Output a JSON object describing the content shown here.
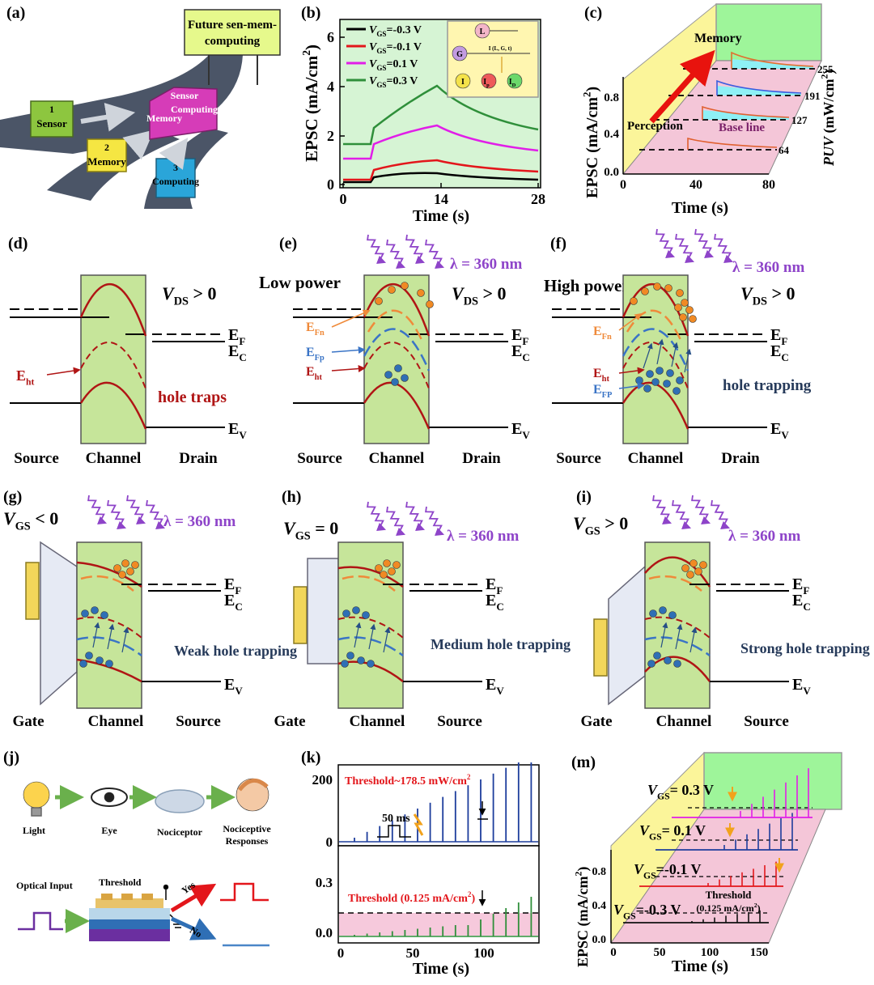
{
  "a": {
    "label": "(a)",
    "sign": [
      "Future sen-mem-",
      "computing"
    ],
    "car1": [
      "1",
      "Sensor"
    ],
    "car2": [
      "2",
      "Memory"
    ],
    "car3": [
      "3",
      "Computing"
    ],
    "truck": [
      "Sensor",
      "Memory",
      "Computing"
    ]
  },
  "b": {
    "label": "(b)",
    "ylabel": [
      "EPSC (mA/cm",
      "2",
      ")"
    ],
    "xlabel": "Time (s)",
    "xticks": [
      "0",
      "14",
      "28"
    ],
    "yticks": [
      "0",
      "2",
      "4",
      "6"
    ],
    "legend": [
      [
        "V",
        "GS",
        "=-0.3 V"
      ],
      [
        "V",
        "GS",
        "=-0.1 V"
      ],
      [
        "V",
        "GS",
        "=0.1 V"
      ],
      [
        "V",
        "GS",
        "=0.3 V"
      ]
    ],
    "inset": [
      "L",
      "G",
      "I (L, G, t)",
      "I"
    ],
    "inset_p": [
      "I",
      "p"
    ],
    "inset_d": [
      "I",
      "D"
    ]
  },
  "c": {
    "label": "(c)",
    "memory": "Memory",
    "perception": "Perception",
    "baseline": "Base line",
    "ylabel": [
      "EPSC (mA/cm",
      "2",
      ")"
    ],
    "yticks": [
      "0.0",
      "0.4",
      "0.8"
    ],
    "xticks": [
      "0",
      "40",
      "80"
    ],
    "xlabel": "Time (s)",
    "zticks": [
      "64",
      "127",
      "191",
      "255"
    ],
    "zlabel": [
      "P",
      "UV",
      " (mW/cm",
      "2",
      ")"
    ]
  },
  "d": {
    "label": "(d)",
    "vds": [
      "V",
      "DS",
      " > 0"
    ],
    "ef": [
      "E",
      "F"
    ],
    "ec": [
      "E",
      "C"
    ],
    "eht": [
      "E",
      "ht"
    ],
    "traps": "hole traps",
    "ev": [
      "E",
      "V"
    ],
    "bottom": [
      "Source",
      "Channel",
      "Drain"
    ]
  },
  "e": {
    "label": "(e)",
    "lambda": "λ = 360 nm",
    "power": "Low power",
    "vds": [
      "V",
      "DS",
      " > 0"
    ],
    "efn": [
      "E",
      "Fn"
    ],
    "efp": [
      "E",
      "Fp"
    ],
    "eht": [
      "E",
      "ht"
    ],
    "ef": [
      "E",
      "F"
    ],
    "ec": [
      "E",
      "C"
    ],
    "ev": [
      "E",
      "V"
    ],
    "bottom": [
      "Source",
      "Channel",
      "Drain"
    ]
  },
  "f": {
    "label": "(f)",
    "lambda": "λ = 360 nm",
    "power": "High power",
    "vds": [
      "V",
      "DS",
      " > 0"
    ],
    "efn": [
      "E",
      "Fn"
    ],
    "eht": [
      "E",
      "ht"
    ],
    "efp": [
      "E",
      "FP"
    ],
    "trapping": "hole trapping",
    "ef": [
      "E",
      "F"
    ],
    "ec": [
      "E",
      "C"
    ],
    "ev": [
      "E",
      "V"
    ],
    "bottom": [
      "Source",
      "Channel",
      "Drain"
    ]
  },
  "g": {
    "label": "(g)",
    "vgs": [
      "V",
      "GS",
      " < 0"
    ],
    "lambda": "λ = 360 nm",
    "ef": [
      "E",
      "F"
    ],
    "ec": [
      "E",
      "C"
    ],
    "trapping": "Weak hole trapping",
    "ev": [
      "E",
      "V"
    ],
    "bottom": [
      "Gate",
      "Channel",
      "Source"
    ]
  },
  "h": {
    "label": "(h)",
    "vgs": [
      "V",
      "GS",
      " = 0"
    ],
    "lambda": "λ = 360 nm",
    "ef": [
      "E",
      "F"
    ],
    "ec": [
      "E",
      "C"
    ],
    "trapping": "Medium hole trapping",
    "ev": [
      "E",
      "V"
    ],
    "bottom": [
      "Gate",
      "Channel",
      "Source"
    ]
  },
  "i": {
    "label": "(i)",
    "vgs": [
      "V",
      "GS",
      " > 0"
    ],
    "lambda": "λ = 360 nm",
    "ef": [
      "E",
      "F"
    ],
    "ec": [
      "E",
      "C"
    ],
    "trapping": "Strong hole trapping",
    "ev": [
      "E",
      "V"
    ],
    "bottom": [
      "Gate",
      "Channel",
      "Source"
    ]
  },
  "j": {
    "label": "(j)",
    "chain": [
      "Light",
      "Eye",
      "Nociceptor"
    ],
    "responses": [
      "Nociceptive",
      "Responses"
    ],
    "input": "Optical Input",
    "threshold": "Threshold",
    "yes": "Yes",
    "no": "No"
  },
  "k": {
    "label": "(k)",
    "threshold_power": [
      "Threshold~178.5 mW/cm",
      "2"
    ],
    "pulse": "50 ms",
    "threshold_current": [
      "Threshold (0.125 mA/cm",
      "2",
      ")"
    ],
    "yticks_top": [
      "0",
      "200"
    ],
    "yticks_bottom": [
      "0.0",
      "0.3"
    ],
    "xticks": [
      "0",
      "50",
      "100"
    ],
    "xlabel": "Time (s)"
  },
  "m": {
    "label": "(m)",
    "legend": [
      [
        "V",
        "GS",
        "= 0.3 V"
      ],
      [
        "V",
        "GS",
        "= 0.1 V"
      ],
      [
        "V",
        "GS",
        "=-0.1 V"
      ],
      [
        "V",
        "GS",
        "=-0.3 V"
      ]
    ],
    "threshold": "Threshold",
    "threshold_value": [
      "(0.125 mA/cm",
      "2",
      ")"
    ],
    "ylabel": [
      "EPSC (mA/cm",
      "2",
      ")"
    ],
    "yticks": [
      "0.0",
      "0.4",
      "0.8"
    ],
    "xticks": [
      "0",
      "50",
      "100",
      "150"
    ],
    "xlabel": "Time (s)"
  }
}
